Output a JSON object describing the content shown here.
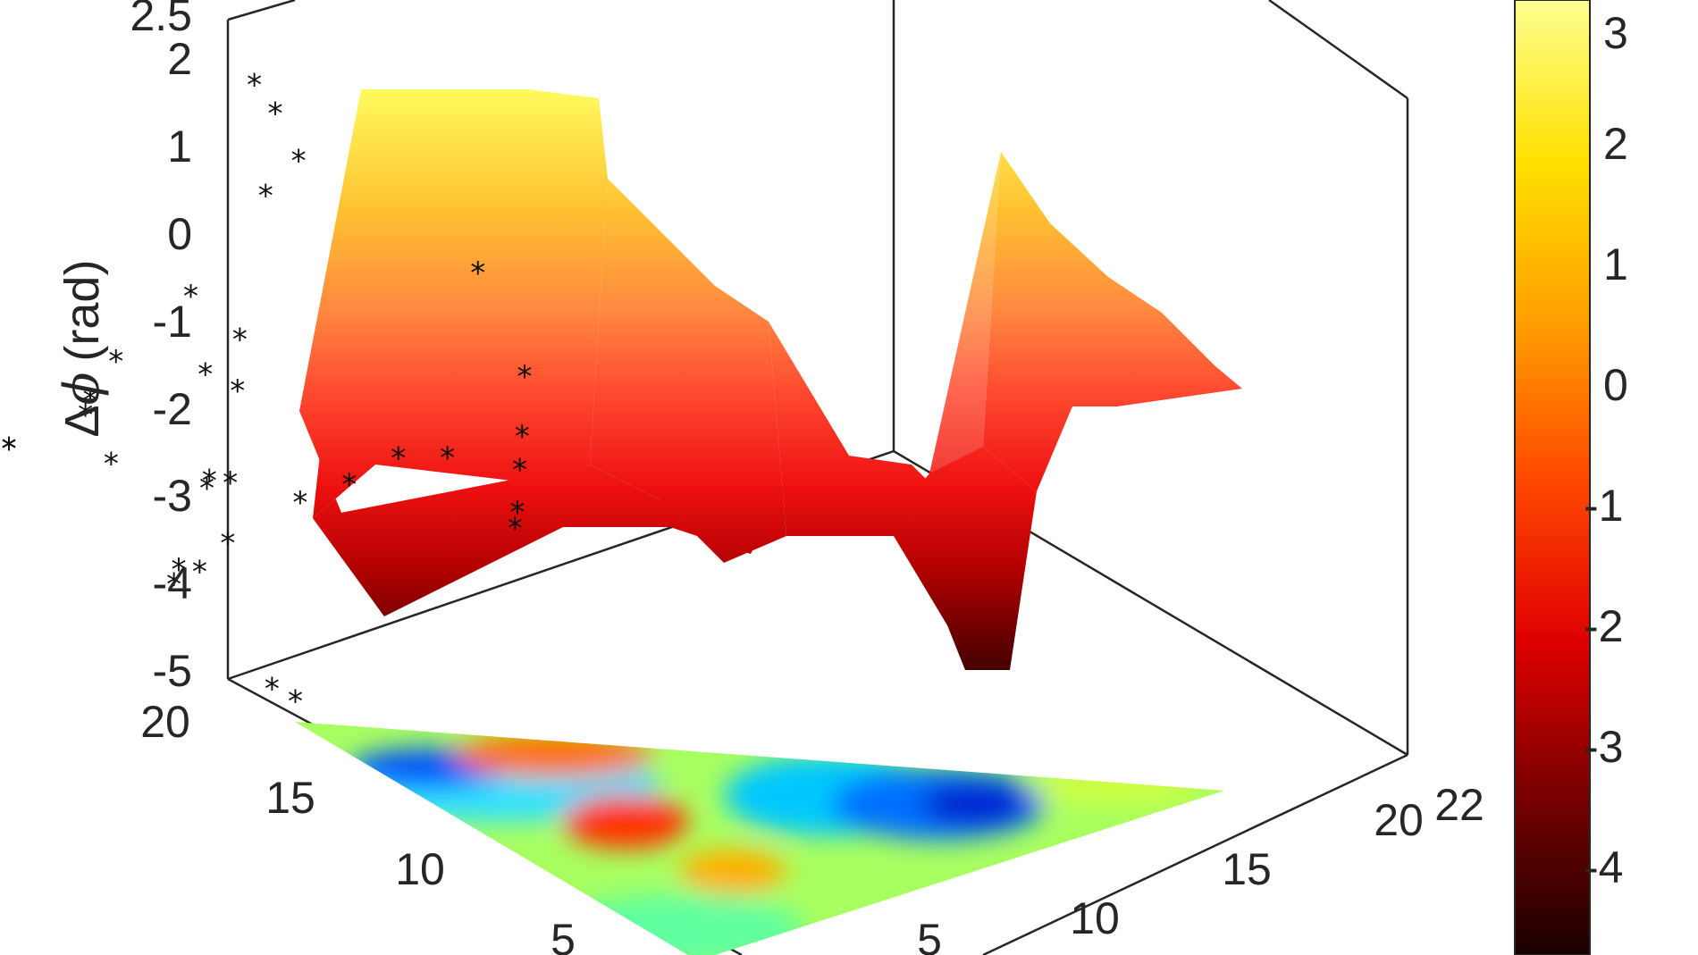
{
  "chart_data": {
    "type": "surface3d",
    "title": "",
    "zlabel": {
      "delta": "Δ",
      "phi": "ϕ",
      "unit": "(rad)"
    },
    "z_ticks": [
      "-5",
      "-4",
      "-3",
      "-2",
      "-1",
      "0",
      "1",
      "2",
      "2.5"
    ],
    "x_ticks": [
      "5",
      "10",
      "15",
      "20",
      "22"
    ],
    "y_ticks": [
      "5",
      "10",
      "15",
      "20"
    ],
    "colorbar_ticks": [
      "-4",
      "-3",
      "-2",
      "-1",
      "0",
      "1",
      "2",
      "3"
    ],
    "zlim": [
      -5,
      2.5
    ],
    "clim": [
      -4.8,
      3.5
    ],
    "grid": true,
    "colormap_surface": "hot",
    "colormap_projection": "jet",
    "colors": {
      "axis": "#262626",
      "grid": "#dcdcdc",
      "marker": "#111111",
      "hot": [
        "#1a0000",
        "#7a0000",
        "#e00000",
        "#ff4a00",
        "#ff9d00",
        "#ffe000",
        "#ffff90"
      ],
      "jet": [
        "#0000b0",
        "#0060ff",
        "#00d8ff",
        "#60ff90",
        "#e8ff30",
        "#ff9000",
        "#ff2a00"
      ]
    },
    "points": [
      {
        "x": 2,
        "y": 18,
        "z": 1.8
      },
      {
        "x": 4,
        "y": 17,
        "z": 1.6
      },
      {
        "x": 5,
        "y": 17,
        "z": 1.2
      },
      {
        "x": 1,
        "y": 17,
        "z": -1.8
      },
      {
        "x": 8,
        "y": 13,
        "z": 0.6
      },
      {
        "x": 7,
        "y": 11,
        "z": -1.0
      },
      {
        "x": 8,
        "y": 12,
        "z": -1.2
      },
      {
        "x": 9,
        "y": 11,
        "z": -1.8
      },
      {
        "x": 6,
        "y": 9,
        "z": -2.2
      },
      {
        "x": 6,
        "y": 8,
        "z": -2.8
      },
      {
        "x": 8,
        "y": 7,
        "z": -3.4
      },
      {
        "x": 8,
        "y": 6,
        "z": -3.0
      },
      {
        "x": 4,
        "y": 5,
        "z": -4.1
      },
      {
        "x": 3,
        "y": 4,
        "z": -4.4
      },
      {
        "x": 10,
        "y": 9,
        "z": -3.0
      },
      {
        "x": 11,
        "y": 8,
        "z": -3.1
      },
      {
        "x": 12,
        "y": 8,
        "z": -2.9
      },
      {
        "x": 13,
        "y": 7,
        "z": -3.6
      },
      {
        "x": 12,
        "y": 6,
        "z": -4.2
      },
      {
        "x": 14,
        "y": 5,
        "z": -4.1
      },
      {
        "x": 14,
        "y": 4,
        "z": -4.4
      },
      {
        "x": 16,
        "y": 6,
        "z": -5.0
      },
      {
        "x": 17,
        "y": 6,
        "z": -5.0
      },
      {
        "x": 15,
        "y": 8,
        "z": -2.7
      },
      {
        "x": 16,
        "y": 9,
        "z": -2.2
      },
      {
        "x": 17,
        "y": 10,
        "z": -1.6
      },
      {
        "x": 18,
        "y": 11,
        "z": -1.3
      },
      {
        "x": 16,
        "y": 14,
        "z": 1.0
      },
      {
        "x": 18,
        "y": 14,
        "z": 0.1
      },
      {
        "x": 19,
        "y": 13,
        "z": -0.6
      },
      {
        "x": 20,
        "y": 12,
        "z": -1.0
      },
      {
        "x": 21,
        "y": 11,
        "z": -1.5
      },
      {
        "x": 22,
        "y": 10,
        "z": -1.7
      }
    ]
  }
}
